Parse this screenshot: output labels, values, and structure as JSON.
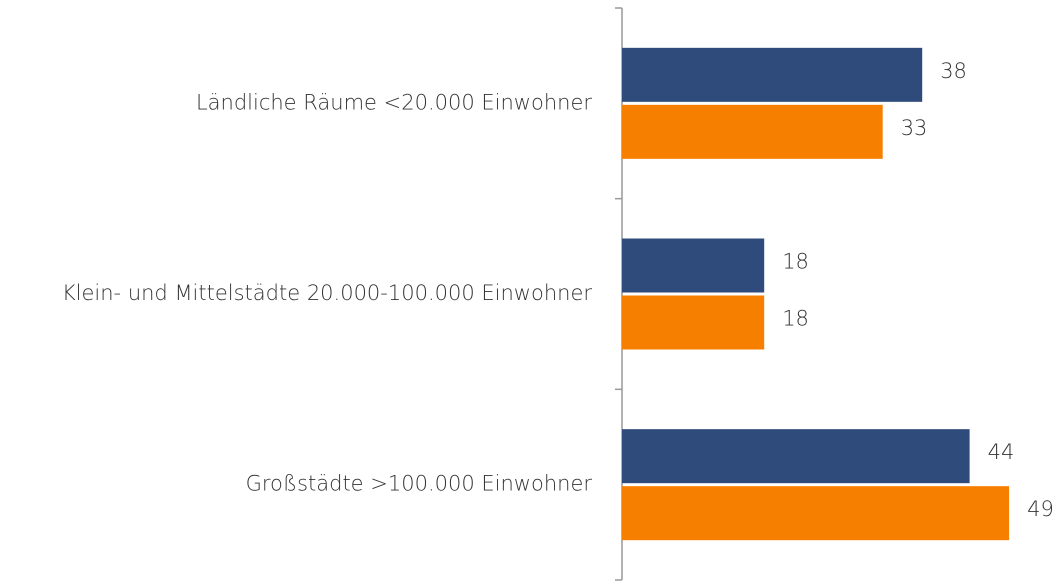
{
  "chart_data": {
    "type": "hbar",
    "categories": [
      "Ländliche Räume <20.000 Einwohner",
      "Klein- und Mittelstädte 20.000-100.000 Einwohner",
      "Großstädte >100.000 Einwohner"
    ],
    "series": [
      {
        "color": "#2f4b7c",
        "values": [
          38,
          18,
          44
        ]
      },
      {
        "color": "#f77f00",
        "values": [
          33,
          18,
          49
        ]
      }
    ],
    "xlim": [
      0,
      50
    ]
  }
}
